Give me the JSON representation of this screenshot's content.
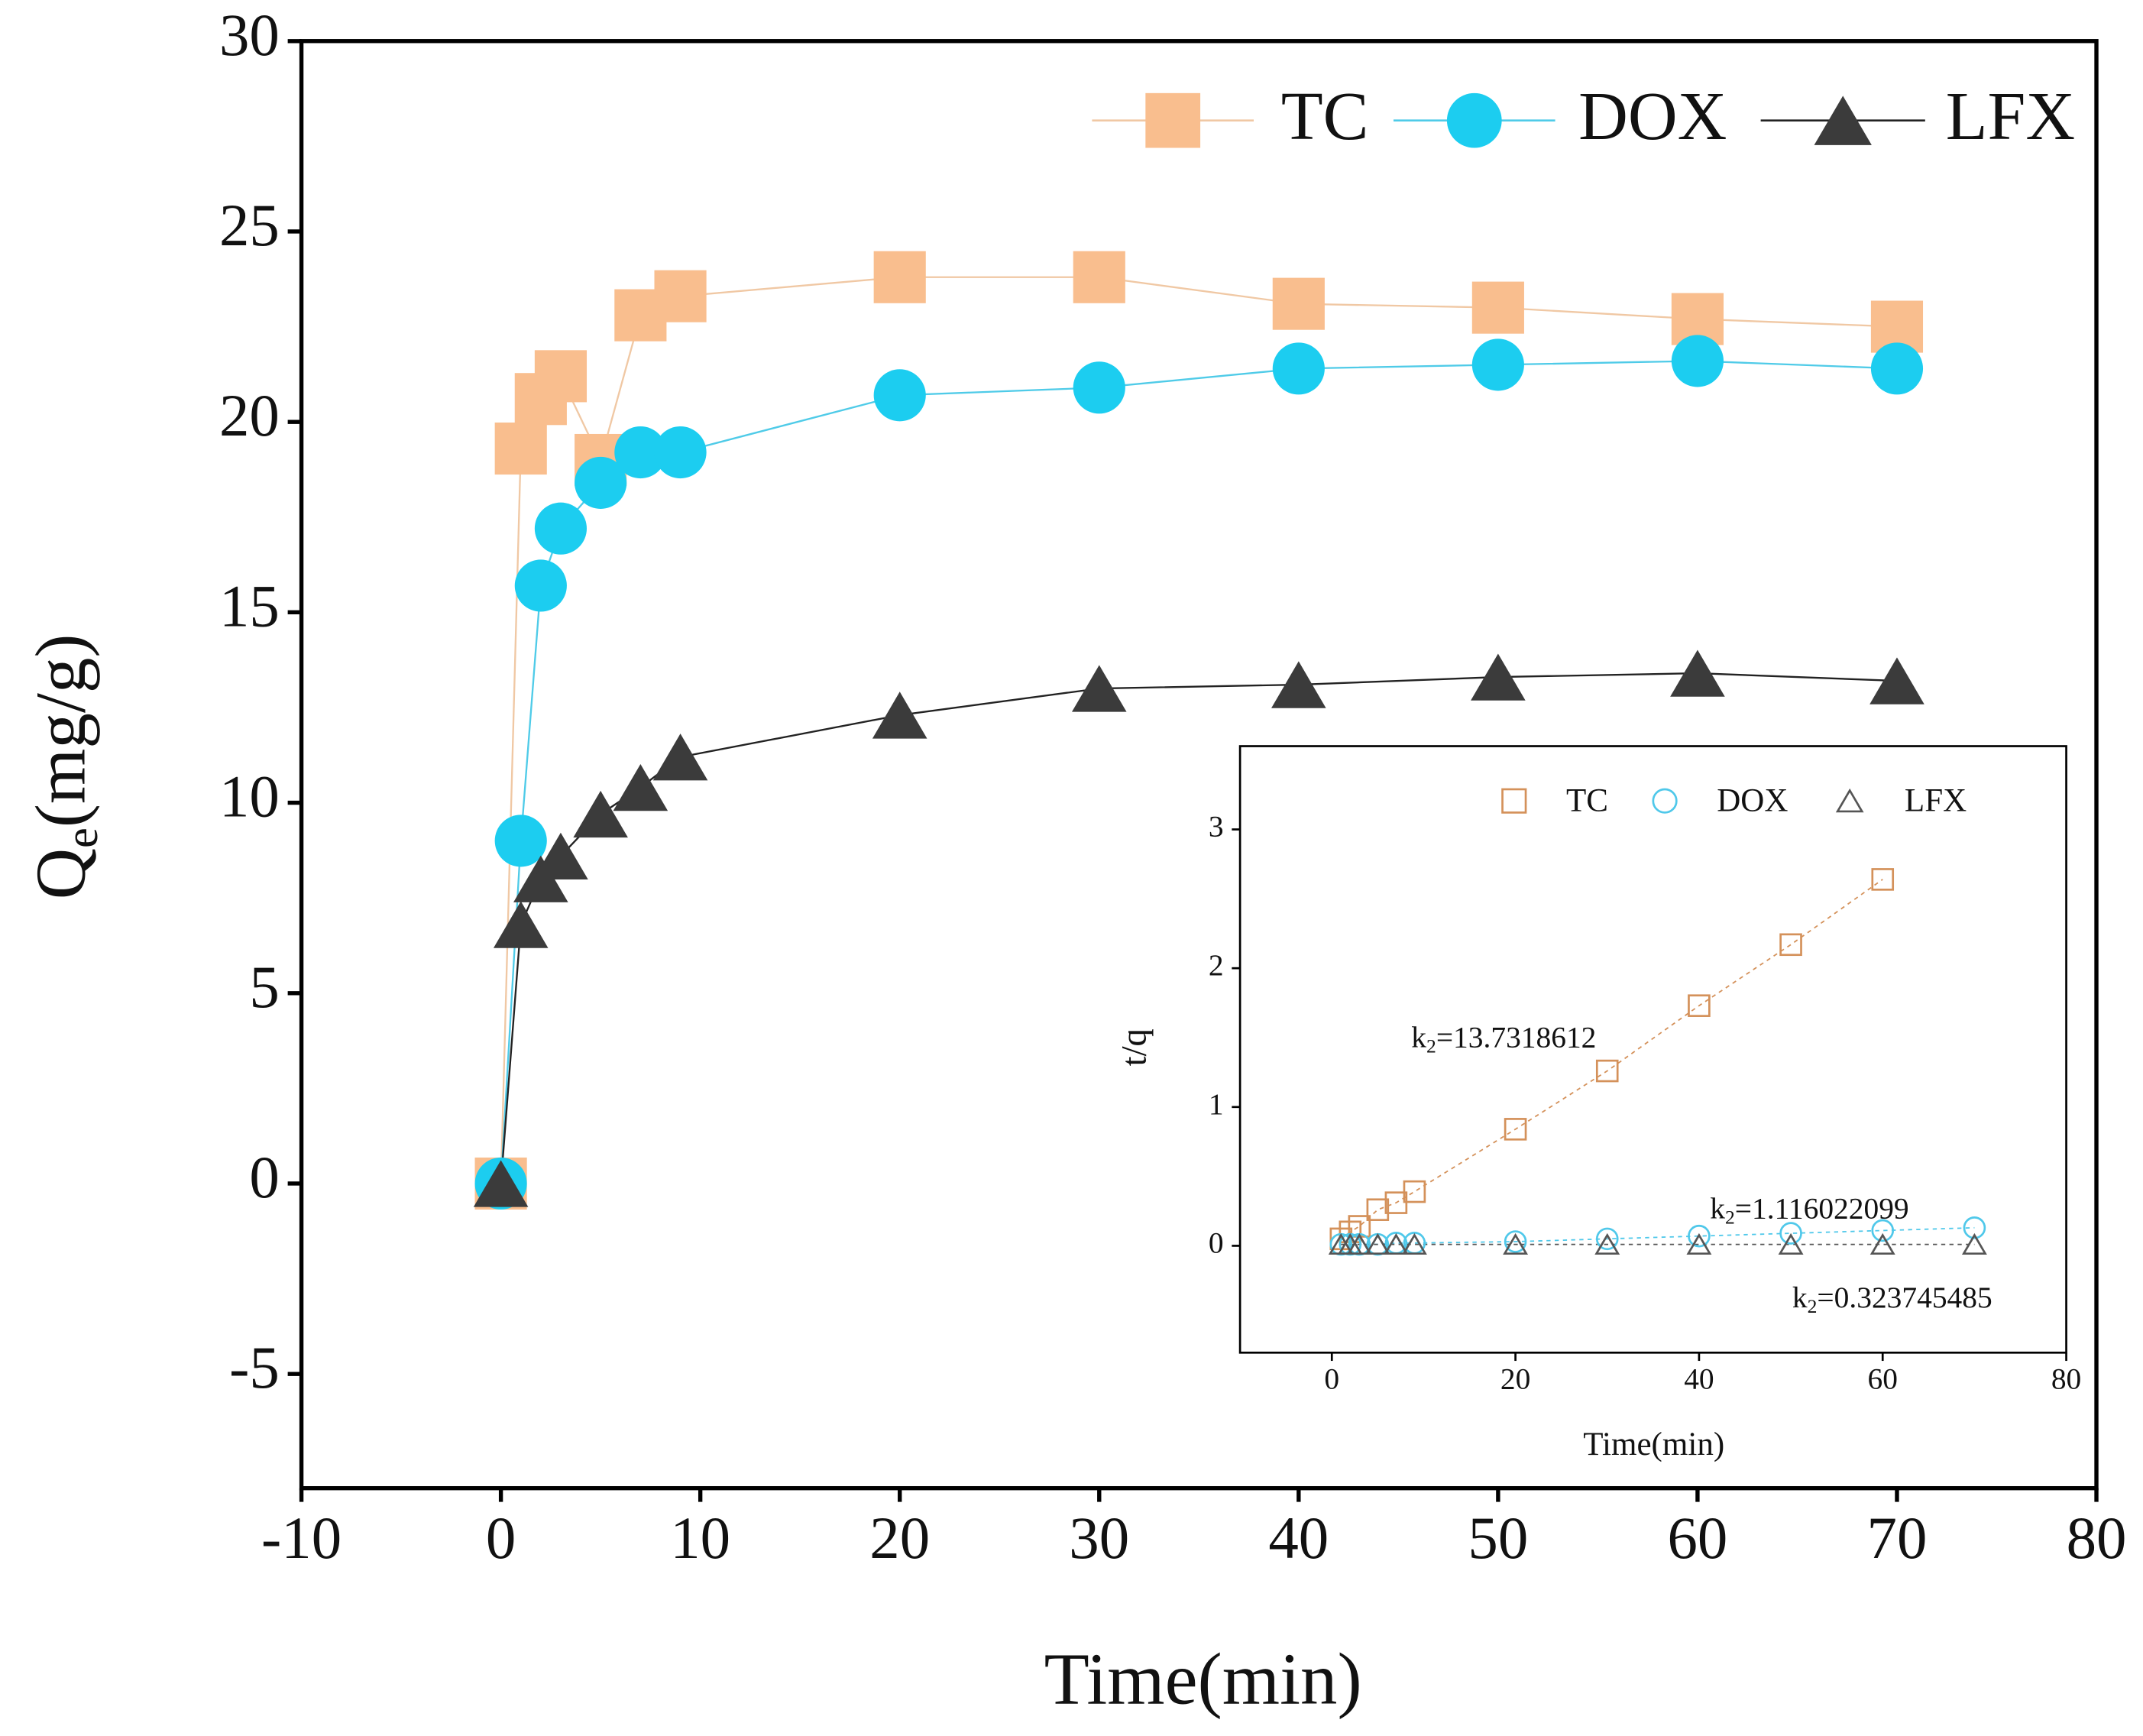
{
  "chart_data": [
    {
      "type": "line",
      "x_label": "Time(min)",
      "y_label": {
        "main": "Q",
        "subscript": "e",
        "rest": "(mg/g)"
      },
      "xlim": [
        -10,
        80
      ],
      "xticks": [
        -10,
        0,
        10,
        20,
        30,
        40,
        50,
        60,
        70,
        80
      ],
      "ylim": [
        -8,
        30
      ],
      "yticks": [
        -5,
        0,
        5,
        10,
        15,
        20,
        25,
        30
      ],
      "legend": "upper right",
      "series": [
        {
          "name": "TC",
          "color": "#f9be8e",
          "line_color": "#f0c8a4",
          "marker": "square",
          "filled": true,
          "x": [
            0,
            1,
            2,
            3,
            5,
            7,
            9,
            20,
            30,
            40,
            50,
            60,
            70
          ],
          "values": [
            0,
            19.3,
            20.6,
            21.2,
            19.0,
            22.8,
            23.3,
            23.8,
            23.8,
            23.1,
            23.0,
            22.7,
            22.5
          ]
        },
        {
          "name": "DOX",
          "color": "#1ccdf0",
          "line_color": "#4fcbe8",
          "marker": "circle",
          "filled": true,
          "x": [
            0,
            1,
            2,
            3,
            5,
            7,
            9,
            20,
            30,
            40,
            50,
            60,
            70
          ],
          "values": [
            0,
            9.0,
            15.7,
            17.2,
            18.4,
            19.2,
            19.2,
            20.7,
            20.9,
            21.4,
            21.5,
            21.6,
            21.4
          ]
        },
        {
          "name": "LFX",
          "color": "#3b3b3b",
          "line_color": "#222222",
          "marker": "triangle",
          "filled": true,
          "x": [
            0,
            1,
            2,
            3,
            5,
            7,
            9,
            20,
            30,
            40,
            50,
            60,
            70
          ],
          "values": [
            0,
            6.8,
            8.0,
            8.6,
            9.7,
            10.4,
            11.2,
            12.3,
            13.0,
            13.1,
            13.3,
            13.4,
            13.2
          ]
        }
      ]
    },
    {
      "type": "scatter",
      "x_label": "Time(min)",
      "y_label": "t/q",
      "xlim": [
        -10,
        80
      ],
      "xticks": [
        0,
        20,
        40,
        60,
        80
      ],
      "ylim": [
        -0.77,
        3.6
      ],
      "yticks": [
        0,
        1,
        2,
        3
      ],
      "legend": "upper center",
      "annotations": [
        {
          "main": "k",
          "subscript": "2",
          "rest": "=13.7318612"
        },
        {
          "main": "k",
          "subscript": "2",
          "rest": "=1.116022099"
        },
        {
          "main": "k",
          "subscript": "2",
          "rest": "=0.323745485"
        }
      ],
      "series": [
        {
          "name": "TC",
          "color": "#d4915a",
          "marker": "square",
          "filled": false,
          "x": [
            1,
            2,
            3,
            5,
            7,
            9,
            20,
            30,
            40,
            50,
            60
          ],
          "values": [
            0.05,
            0.1,
            0.14,
            0.26,
            0.31,
            0.39,
            0.84,
            1.26,
            1.73,
            2.17,
            2.64
          ]
        },
        {
          "name": "DOX",
          "color": "#4fc8ea",
          "marker": "circle",
          "filled": false,
          "x": [
            1,
            2,
            3,
            5,
            7,
            9,
            20,
            30,
            40,
            50,
            60,
            70
          ],
          "values": [
            0.01,
            0.01,
            0.01,
            0.01,
            0.02,
            0.02,
            0.03,
            0.05,
            0.07,
            0.09,
            0.11,
            0.13
          ]
        },
        {
          "name": "LFX",
          "color": "#555555",
          "marker": "triangle",
          "filled": false,
          "x": [
            1,
            2,
            3,
            5,
            7,
            9,
            20,
            30,
            40,
            50,
            60,
            70
          ],
          "values": [
            0.01,
            0.01,
            0.01,
            0.01,
            0.01,
            0.01,
            0.01,
            0.01,
            0.01,
            0.01,
            0.01,
            0.01
          ]
        }
      ]
    }
  ]
}
